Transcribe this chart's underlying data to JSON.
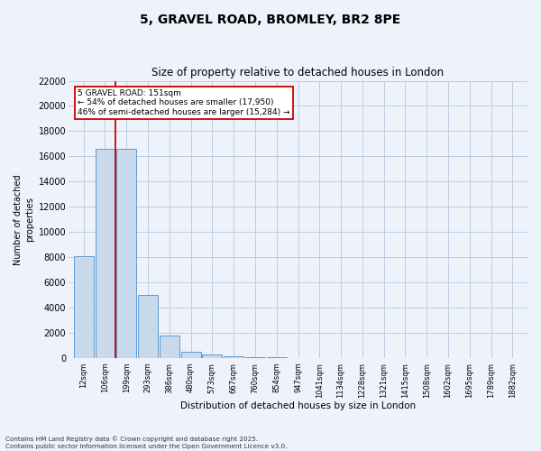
{
  "title": "5, GRAVEL ROAD, BROMLEY, BR2 8PE",
  "subtitle": "Size of property relative to detached houses in London",
  "xlabel": "Distribution of detached houses by size in London",
  "ylabel": "Number of detached\nproperties",
  "bar_color": "#c8d9ec",
  "bar_edge_color": "#5b9bd5",
  "background_color": "#eef2fb",
  "grid_color": "#b8c8e0",
  "bins": [
    "12sqm",
    "106sqm",
    "199sqm",
    "293sqm",
    "386sqm",
    "480sqm",
    "573sqm",
    "667sqm",
    "760sqm",
    "854sqm",
    "947sqm",
    "1041sqm",
    "1134sqm",
    "1228sqm",
    "1321sqm",
    "1415sqm",
    "1508sqm",
    "1602sqm",
    "1695sqm",
    "1789sqm",
    "1882sqm"
  ],
  "values": [
    8100,
    16600,
    16600,
    5000,
    1750,
    480,
    280,
    140,
    70,
    25,
    8,
    4,
    2,
    1,
    1,
    0,
    0,
    0,
    0,
    0,
    0
  ],
  "ylim": [
    0,
    22000
  ],
  "yticks": [
    0,
    2000,
    4000,
    6000,
    8000,
    10000,
    12000,
    14000,
    16000,
    18000,
    20000,
    22000
  ],
  "property_label": "5 GRAVEL ROAD: 151sqm",
  "annotation_line1": "← 54% of detached houses are smaller (17,950)",
  "annotation_line2": "46% of semi-detached houses are larger (15,284) →",
  "red_line_color": "#cc0000",
  "annotation_box_color": "#ffffff",
  "annotation_box_edge": "#cc0000",
  "copyright_text": "Contains HM Land Registry data © Crown copyright and database right 2025.\nContains public sector information licensed under the Open Government Licence v3.0."
}
